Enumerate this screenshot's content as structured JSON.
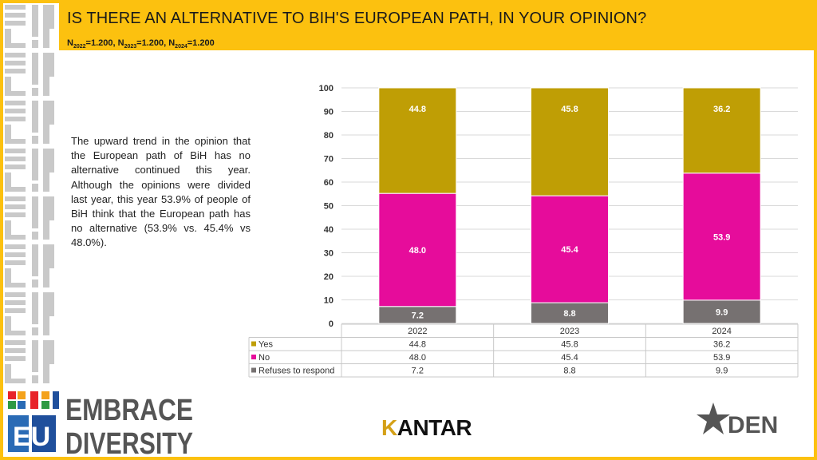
{
  "header": {
    "title": "IS THERE AN ALTERNATIVE TO BIH'S EUROPEAN PATH, IN YOUR OPINION?",
    "sample_parts": [
      {
        "label": "N",
        "sub": "2022",
        "value": "=1.200, "
      },
      {
        "label": "N",
        "sub": "2023",
        "value": "=1.200, "
      },
      {
        "label": "N",
        "sub": "2024",
        "value": "=1.200"
      }
    ]
  },
  "description": "The upward trend in the opinion that the European path of BiH has no alternative continued this year. Although the opinions were divided last year, this year 53.9% of people of BiH think that the European path has no alternative (53.9% vs. 45.4% vs 48.0%).",
  "chart_data": {
    "type": "bar",
    "stacked": true,
    "categories": [
      "2022",
      "2023",
      "2024"
    ],
    "series": [
      {
        "name": "Refuses to respond",
        "values": [
          7.2,
          8.8,
          9.9
        ],
        "color": "#767171"
      },
      {
        "name": "No",
        "values": [
          48.0,
          45.4,
          53.9
        ],
        "color": "#e60c9b"
      },
      {
        "name": "Yes",
        "values": [
          44.8,
          45.8,
          36.2
        ],
        "color": "#bf9e05"
      }
    ],
    "legend_order": [
      "Yes",
      "No",
      "Refuses to respond"
    ],
    "ylim": [
      0,
      100
    ],
    "yticks": [
      0,
      10,
      20,
      30,
      40,
      50,
      60,
      70,
      80,
      90,
      100
    ],
    "grid": true,
    "data_table": true
  },
  "logos": {
    "left_top": "Ei",
    "left_bottom": "EU",
    "embrace_line1": "EMBRACE",
    "embrace_line2": "DIVERSITY",
    "kantar_k": "K",
    "kantar_rest": "ANTAR",
    "den": "DEN"
  },
  "colors": {
    "accent": "#fcc10f"
  }
}
